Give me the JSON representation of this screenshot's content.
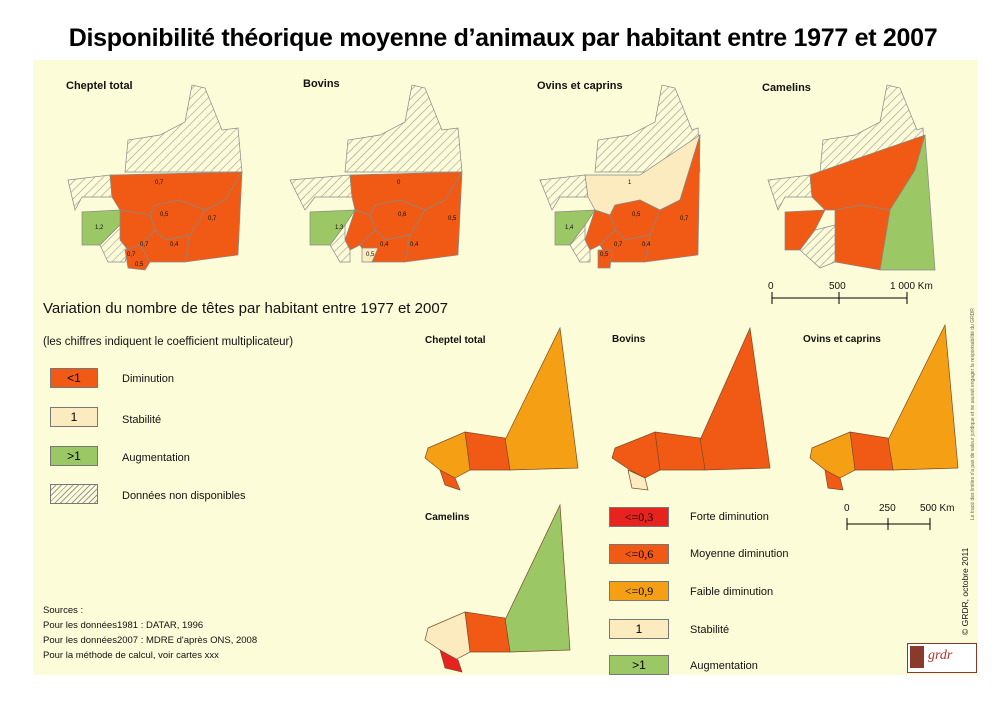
{
  "title": "Disponibilité théorique moyenne d’animaux par habitant entre 1977 et 2007",
  "top_maps": [
    {
      "label": "Cheptel total",
      "values": [
        "0,7",
        "0,5",
        "0,7",
        "1,2",
        "0,7",
        "0,4",
        "0,7",
        "0,5"
      ]
    },
    {
      "label": "Bovins",
      "values": [
        "0",
        "0,6",
        "0,5",
        "1,3",
        "0,4",
        "0,4",
        "0,5"
      ]
    },
    {
      "label": "Ovins et caprins",
      "values": [
        "1",
        "0,5",
        "0,7",
        "1,4",
        "0,7",
        "0,4",
        "0,5"
      ]
    },
    {
      "label": "Camelins",
      "values": []
    }
  ],
  "scale_top": {
    "ticks": [
      "0",
      "500",
      "1 000 Km"
    ]
  },
  "subtitle": "Variation du nombre de têtes par habitant entre 1977 et 2007",
  "note": "(les chiffres indiquent le coefficient multiplicateur)",
  "legend_left": [
    {
      "code": "<1",
      "label": "Diminution",
      "color": "#f05a14"
    },
    {
      "code": "1",
      "label": "Stabilité",
      "color": "#fdebc0"
    },
    {
      "code": ">1",
      "label": "Augmentation",
      "color": "#9bc864"
    },
    {
      "code": "",
      "label": "Données non disponibles",
      "color": "hatch"
    }
  ],
  "bottom_maps": [
    {
      "label": "Cheptel total"
    },
    {
      "label": "Bovins"
    },
    {
      "label": "Ovins et caprins"
    },
    {
      "label": "Camelins"
    }
  ],
  "scale_bottom": {
    "ticks": [
      "0",
      "250",
      "500  Km"
    ]
  },
  "legend_right": [
    {
      "code": "<=0,3",
      "label": "Forte diminution",
      "color": "#e6231e"
    },
    {
      "code": "<=0,6",
      "label": "Moyenne diminution",
      "color": "#f05a14"
    },
    {
      "code": "<=0,9",
      "label": "Faible diminution",
      "color": "#f5a014"
    },
    {
      "code": "1",
      "label": "Stabilité",
      "color": "#fdebc0"
    },
    {
      "code": ">1",
      "label": "Augmentation",
      "color": "#9bc864"
    }
  ],
  "sources": {
    "heading": "Sources :",
    "line1": "Pour les données1981 : DATAR, 1996",
    "line2": "Pour les données2007 : MDRE d'après ONS, 2008",
    "line3": "Pour la méthode de calcul, voir cartes xxx"
  },
  "credit": "© GRDR, octobre 2011",
  "disclaimer": "Le tracé des limites n'a pas de valeur juridique et ne saurait engager la responsabilité du GRDR",
  "logo_text": "grdr"
}
